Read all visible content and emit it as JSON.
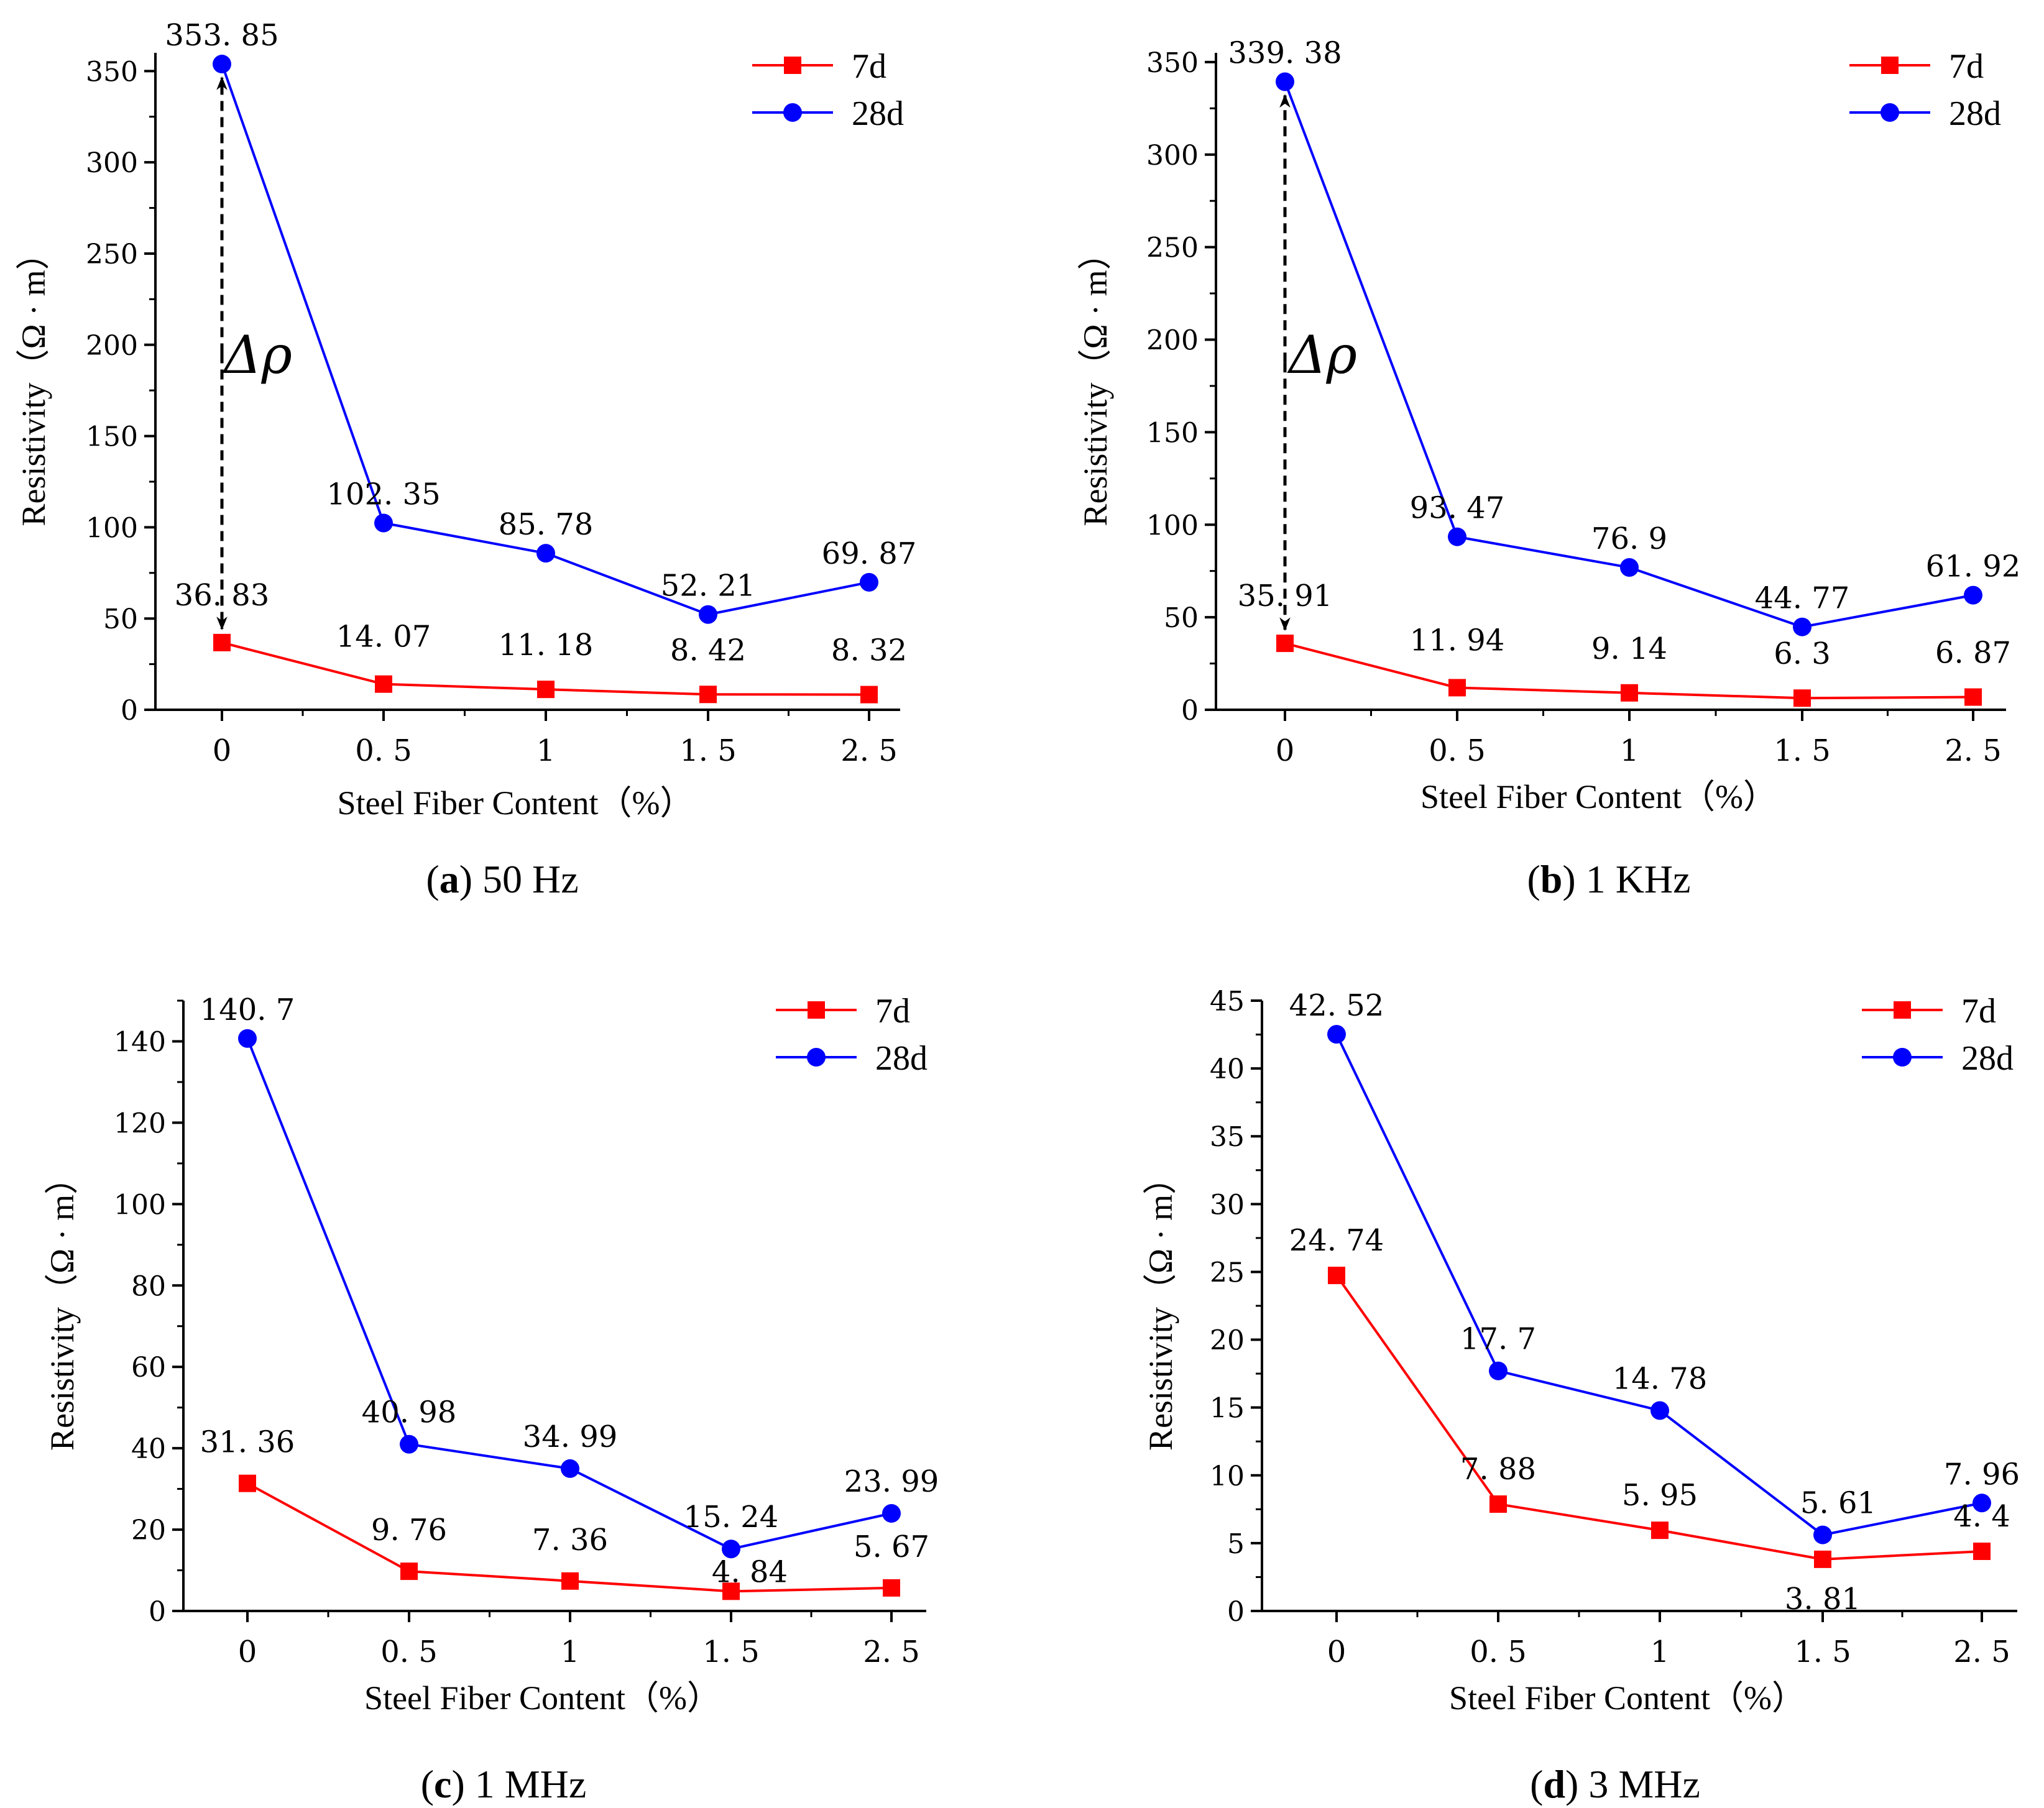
{
  "chart_data": [
    {
      "type": "line",
      "panel_letter": "a",
      "caption": "50 Hz",
      "xlabel": "Steel Fiber Content（%）",
      "ylabel": "Resistivity（Ω · m）",
      "categories": [
        "0",
        "0.5",
        "1",
        "1.5",
        "2.5"
      ],
      "x_tick_labels": [
        "0",
        "0. 5",
        "1",
        "1. 5",
        "2. 5"
      ],
      "ylim": [
        0,
        360
      ],
      "yticks": [
        0,
        50,
        100,
        150,
        200,
        250,
        300,
        350
      ],
      "annotation": "Δρ",
      "series": [
        {
          "name": "7d",
          "color": "#ff0000",
          "marker": "square",
          "values": [
            36.83,
            14.07,
            11.18,
            8.42,
            8.32
          ],
          "labels": [
            "36. 83",
            "14. 07",
            "11. 18",
            "8. 42",
            "8. 32"
          ]
        },
        {
          "name": "28d",
          "color": "#0000ff",
          "marker": "circle",
          "values": [
            353.85,
            102.35,
            85.78,
            52.21,
            69.87
          ],
          "labels": [
            "353. 85",
            "102. 35",
            "85. 78",
            "52. 21",
            "69. 87"
          ]
        }
      ]
    },
    {
      "type": "line",
      "panel_letter": "b",
      "caption": "1 KHz",
      "xlabel": "Steel Fiber Content（%）",
      "ylabel": "Resistivity（Ω · m）",
      "categories": [
        "0",
        "0.5",
        "1",
        "1.5",
        "2.5"
      ],
      "x_tick_labels": [
        "0",
        "0. 5",
        "1",
        "1. 5",
        "2. 5"
      ],
      "ylim": [
        0,
        355
      ],
      "yticks": [
        0,
        50,
        100,
        150,
        200,
        250,
        300,
        350
      ],
      "annotation": "Δρ",
      "series": [
        {
          "name": "7d",
          "color": "#ff0000",
          "marker": "square",
          "values": [
            35.91,
            11.94,
            9.14,
            6.3,
            6.87
          ],
          "labels": [
            "35. 91",
            "11. 94",
            "9. 14",
            "6. 3",
            "6. 87"
          ]
        },
        {
          "name": "28d",
          "color": "#0000ff",
          "marker": "circle",
          "values": [
            339.38,
            93.47,
            76.9,
            44.77,
            61.92
          ],
          "labels": [
            "339. 38",
            "93. 47",
            "76. 9",
            "44. 77",
            "61. 92"
          ]
        }
      ]
    },
    {
      "type": "line",
      "panel_letter": "c",
      "caption": "1 MHz",
      "xlabel": "Steel Fiber Content（%）",
      "ylabel": "Resistivity（Ω · m）",
      "categories": [
        "0",
        "0.5",
        "1",
        "1.5",
        "2.5"
      ],
      "x_tick_labels": [
        "0",
        "0. 5",
        "1",
        "1. 5",
        "2. 5"
      ],
      "ylim": [
        0,
        150
      ],
      "yticks": [
        0,
        20,
        40,
        60,
        80,
        100,
        120,
        140
      ],
      "annotation": "",
      "series": [
        {
          "name": "7d",
          "color": "#ff0000",
          "marker": "square",
          "values": [
            31.36,
            9.76,
            7.36,
            4.84,
            5.67
          ],
          "labels": [
            "31. 36",
            "9. 76",
            "7. 36",
            "4. 84",
            "5. 67"
          ]
        },
        {
          "name": "28d",
          "color": "#0000ff",
          "marker": "circle",
          "values": [
            140.7,
            40.98,
            34.99,
            15.24,
            23.99
          ],
          "labels": [
            "140. 7",
            "40. 98",
            "34. 99",
            "15. 24",
            "23. 99"
          ]
        }
      ]
    },
    {
      "type": "line",
      "panel_letter": "d",
      "caption": "3 MHz",
      "xlabel": "Steel Fiber Content（%）",
      "ylabel": "Resistivity（Ω · m）",
      "categories": [
        "0",
        "0.5",
        "1",
        "1.5",
        "2.5"
      ],
      "x_tick_labels": [
        "0",
        "0. 5",
        "1",
        "1. 5",
        "2. 5"
      ],
      "ylim": [
        0,
        45
      ],
      "yticks": [
        0,
        5,
        10,
        15,
        20,
        25,
        30,
        35,
        40,
        45
      ],
      "annotation": "",
      "series": [
        {
          "name": "7d",
          "color": "#ff0000",
          "marker": "square",
          "values": [
            24.74,
            7.88,
            5.95,
            3.81,
            4.4
          ],
          "labels": [
            "24. 74",
            "7. 88",
            "5. 95",
            "3. 81",
            "4. 4"
          ]
        },
        {
          "name": "28d",
          "color": "#0000ff",
          "marker": "circle",
          "values": [
            42.52,
            17.7,
            14.78,
            5.61,
            7.96
          ],
          "labels": [
            "42. 52",
            "17. 7",
            "14. 78",
            "5. 61",
            "7. 96"
          ]
        }
      ]
    }
  ]
}
